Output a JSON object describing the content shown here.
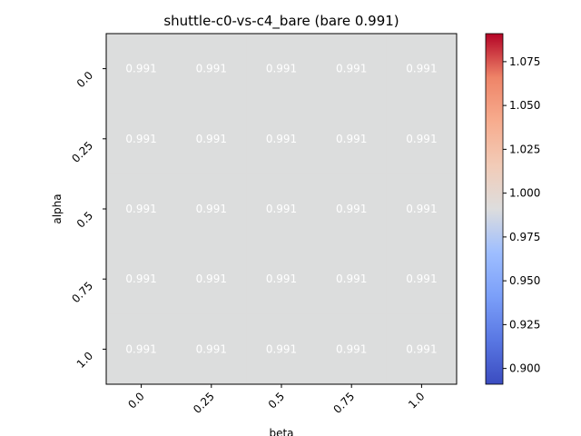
{
  "chart_data": {
    "type": "heatmap",
    "title": "shuttle-c0-vs-c4_bare (bare 0.991)",
    "xlabel": "beta",
    "ylabel": "alpha",
    "x_categories": [
      "0.0",
      "0.25",
      "0.5",
      "0.75",
      "1.0"
    ],
    "y_categories": [
      "0.0",
      "0.25",
      "0.5",
      "0.75",
      "1.0"
    ],
    "values": [
      [
        0.991,
        0.991,
        0.991,
        0.991,
        0.991
      ],
      [
        0.991,
        0.991,
        0.991,
        0.991,
        0.991
      ],
      [
        0.991,
        0.991,
        0.991,
        0.991,
        0.991
      ],
      [
        0.991,
        0.991,
        0.991,
        0.991,
        0.991
      ],
      [
        0.991,
        0.991,
        0.991,
        0.991,
        0.991
      ]
    ],
    "cell_labels": [
      [
        "0.991",
        "0.991",
        "0.991",
        "0.991",
        "0.991"
      ],
      [
        "0.991",
        "0.991",
        "0.991",
        "0.991",
        "0.991"
      ],
      [
        "0.991",
        "0.991",
        "0.991",
        "0.991",
        "0.991"
      ],
      [
        "0.991",
        "0.991",
        "0.991",
        "0.991",
        "0.991"
      ],
      [
        "0.991",
        "0.991",
        "0.991",
        "0.991",
        "0.991"
      ]
    ],
    "colormap": "coolwarm",
    "cell_color": "#dcdddd",
    "colorbar": {
      "vmin": 0.891,
      "vmax": 1.091,
      "ticks": [
        0.9,
        0.925,
        0.95,
        0.975,
        1.0,
        1.025,
        1.05,
        1.075
      ],
      "tick_labels": [
        "0.900",
        "0.925",
        "0.950",
        "0.975",
        "1.000",
        "1.025",
        "1.050",
        "1.075"
      ]
    },
    "grid": false
  }
}
